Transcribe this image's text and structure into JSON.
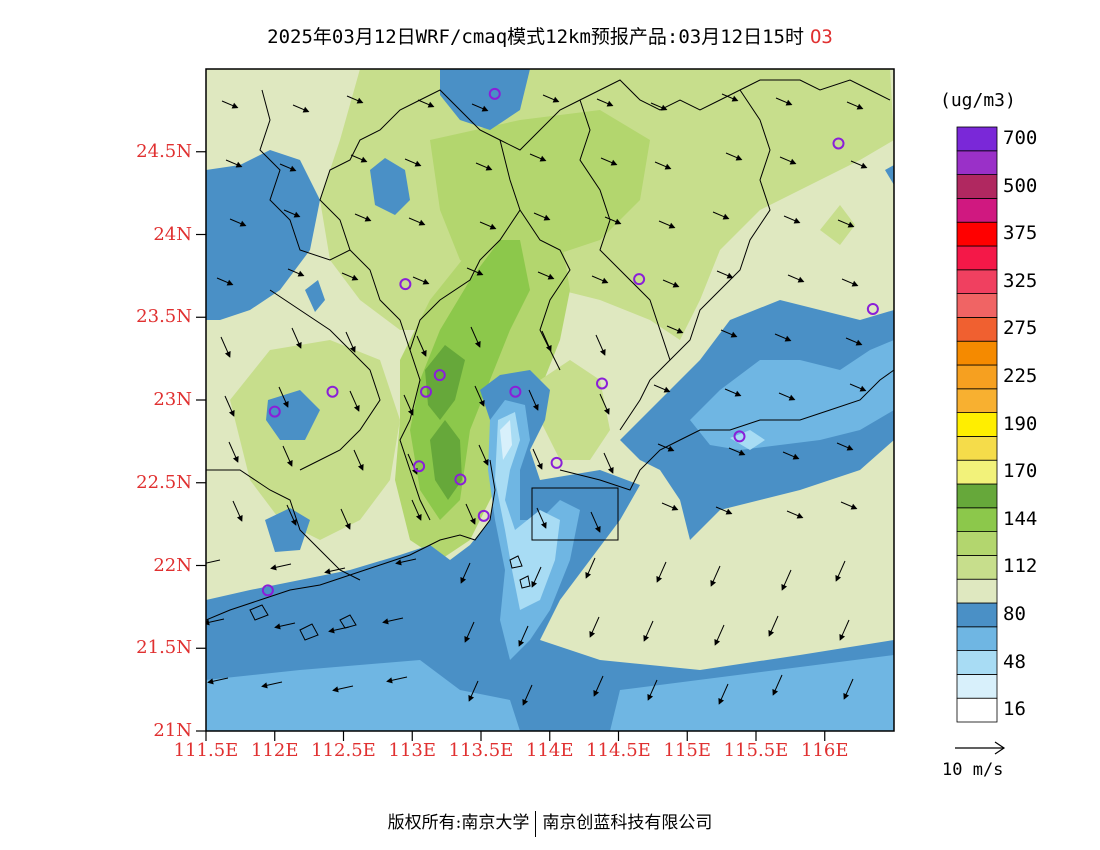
{
  "title": {
    "text": "2025年03月12日WRF/cmaq模式12km预报产品:03月12日15时",
    "species": "O3"
  },
  "footer": {
    "left": "版权所有:南京大学",
    "right": "南京创蓝科技有限公司"
  },
  "axes": {
    "lat_ticks": [
      "21N",
      "21.5N",
      "22N",
      "22.5N",
      "23N",
      "23.5N",
      "24N",
      "24.5N"
    ],
    "lon_ticks": [
      "111.5E",
      "112E",
      "112.5E",
      "113E",
      "113.5E",
      "114E",
      "114.5E",
      "115E",
      "115.5E",
      "116E"
    ]
  },
  "legend": {
    "unit": "(ug/m3)",
    "colors": [
      "#ffffff",
      "#d8f0fb",
      "#a8dcf4",
      "#6fb6e3",
      "#4a90c6",
      "#dfe8c0",
      "#c7de8c",
      "#b3d66e",
      "#8cc84b",
      "#66a83a",
      "#f2f27a",
      "#f5dc4a",
      "#ffee00",
      "#f8b030",
      "#f6a020",
      "#f58a00",
      "#f06030",
      "#f06464",
      "#f04060",
      "#f41848",
      "#ff0000",
      "#d01880",
      "#b02860",
      "#9a30c8",
      "#7a28d8"
    ],
    "labels": [
      {
        "text": "16",
        "boundary": 1
      },
      {
        "text": "48",
        "boundary": 3
      },
      {
        "text": "80",
        "boundary": 5
      },
      {
        "text": "112",
        "boundary": 7
      },
      {
        "text": "144",
        "boundary": 9
      },
      {
        "text": "170",
        "boundary": 11
      },
      {
        "text": "190",
        "boundary": 13
      },
      {
        "text": "225",
        "boundary": 15
      },
      {
        "text": "275",
        "boundary": 17
      },
      {
        "text": "325",
        "boundary": 19
      },
      {
        "text": "375",
        "boundary": 21
      },
      {
        "text": "500",
        "boundary": 23
      },
      {
        "text": "700",
        "boundary": 25
      }
    ],
    "wind_reference": "10 m/s"
  },
  "stations": [
    {
      "lon": 113.6,
      "lat": 24.85
    },
    {
      "lon": 116.1,
      "lat": 24.55
    },
    {
      "lon": 112.95,
      "lat": 23.7
    },
    {
      "lon": 114.65,
      "lat": 23.73
    },
    {
      "lon": 116.35,
      "lat": 23.55
    },
    {
      "lon": 112.42,
      "lat": 23.05
    },
    {
      "lon": 112.0,
      "lat": 22.93
    },
    {
      "lon": 113.2,
      "lat": 23.15
    },
    {
      "lon": 113.1,
      "lat": 23.05
    },
    {
      "lon": 113.75,
      "lat": 23.05
    },
    {
      "lon": 114.38,
      "lat": 23.1
    },
    {
      "lon": 115.38,
      "lat": 22.78
    },
    {
      "lon": 113.05,
      "lat": 22.6
    },
    {
      "lon": 113.35,
      "lat": 22.52
    },
    {
      "lon": 114.05,
      "lat": 22.62
    },
    {
      "lon": 113.52,
      "lat": 22.3
    },
    {
      "lon": 111.95,
      "lat": 21.85
    }
  ],
  "wind": {
    "north": {
      "dx": 0.7,
      "dy": 0.3
    },
    "west": {
      "dx": 0.4,
      "dy": 0.9
    },
    "south": {
      "dx": -0.4,
      "dy": 0.9
    },
    "southwest": {
      "dx": -0.9,
      "dy": 0.2
    }
  }
}
